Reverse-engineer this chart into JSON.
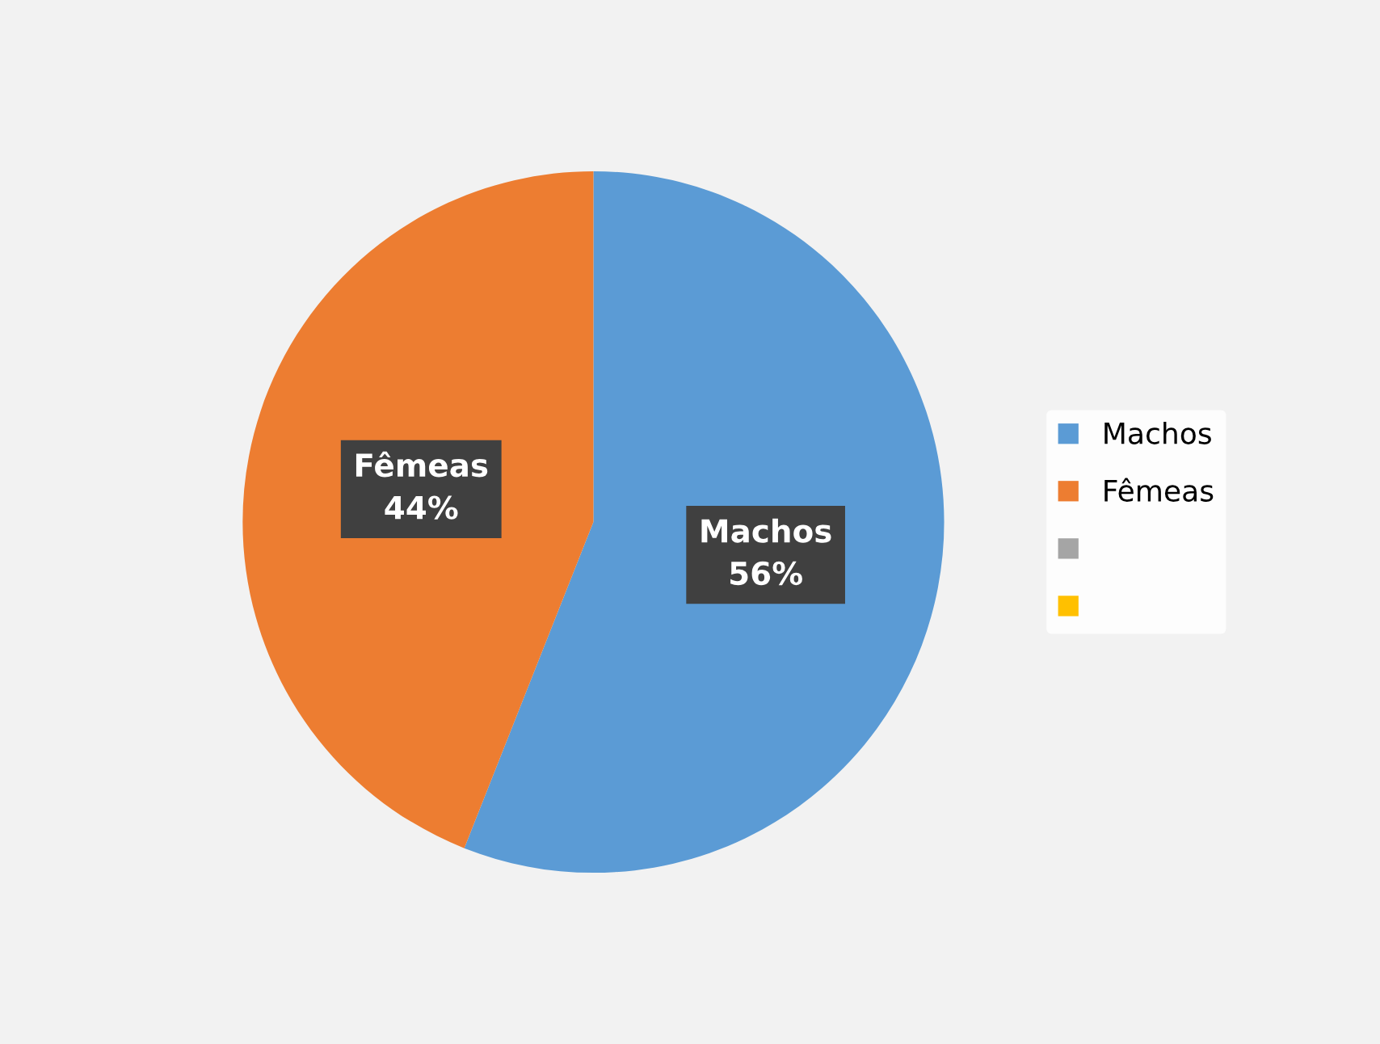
{
  "chart_data": {
    "type": "pie",
    "categories": [
      "Machos",
      "Fêmeas",
      null,
      null
    ],
    "values": [
      56,
      44,
      0,
      0
    ],
    "colors": [
      "#5b9bd5",
      "#ed7d31",
      "#a5a5a5",
      "#ffc000"
    ],
    "value_labels": [
      "56%",
      "44%",
      null,
      null
    ],
    "legend": "right"
  }
}
